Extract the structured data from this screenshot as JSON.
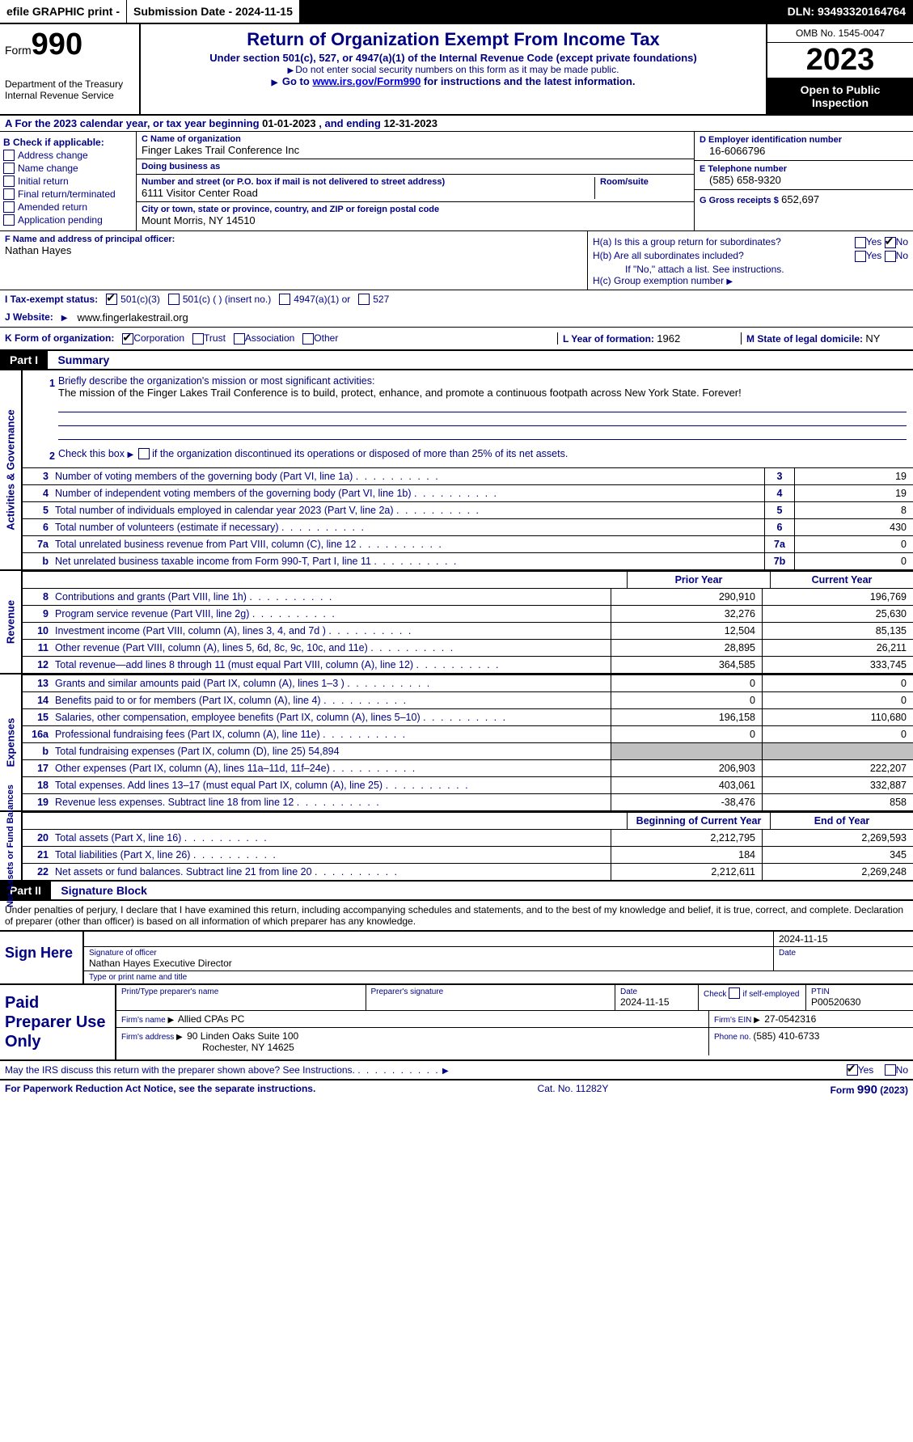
{
  "topbar": {
    "efile": "efile GRAPHIC print -",
    "submission": "Submission Date - 2024-11-15",
    "dln": "DLN: 93493320164764"
  },
  "header": {
    "form_label": "Form",
    "form_number": "990",
    "dept": "Department of the Treasury Internal Revenue Service",
    "title": "Return of Organization Exempt From Income Tax",
    "sub1": "Under section 501(c), 527, or 4947(a)(1) of the Internal Revenue Code (except private foundations)",
    "sub2": "Do not enter social security numbers on this form as it may be made public.",
    "sub3_pre": "Go to ",
    "sub3_link": "www.irs.gov/Form990",
    "sub3_post": " for instructions and the latest information.",
    "omb": "OMB No. 1545-0047",
    "year": "2023",
    "public": "Open to Public Inspection"
  },
  "row_a": {
    "text_pre": "A For the 2023 calendar year, or tax year beginning ",
    "begin": "01-01-2023",
    "text_mid": " , and ending ",
    "end": "12-31-2023"
  },
  "box_b": {
    "label": "B Check if applicable:",
    "items": [
      "Address change",
      "Name change",
      "Initial return",
      "Final return/terminated",
      "Amended return",
      "Application pending"
    ]
  },
  "box_c": {
    "name_label": "C Name of organization",
    "name": "Finger Lakes Trail Conference Inc",
    "dba_label": "Doing business as",
    "dba": "",
    "street_label": "Number and street (or P.O. box if mail is not delivered to street address)",
    "room_label": "Room/suite",
    "street": "6111 Visitor Center Road",
    "city_label": "City or town, state or province, country, and ZIP or foreign postal code",
    "city": "Mount Morris, NY  14510"
  },
  "box_d": {
    "ein_label": "D Employer identification number",
    "ein": "16-6066796",
    "phone_label": "E Telephone number",
    "phone": "(585) 658-9320",
    "gross_label": "G Gross receipts $",
    "gross": "652,697"
  },
  "row_f": {
    "label": "F  Name and address of principal officer:",
    "name": "Nathan Hayes"
  },
  "row_h": {
    "a_label": "H(a)  Is this a group return for subordinates?",
    "b_label": "H(b)  Are all subordinates included?",
    "b_note": "If \"No,\" attach a list. See instructions.",
    "c_label": "H(c)  Group exemption number ",
    "yes": "Yes",
    "no": "No"
  },
  "row_i": {
    "label": "I  Tax-exempt status:",
    "o1": "501(c)(3)",
    "o2": "501(c) (  ) (insert no.)",
    "o3": "4947(a)(1) or",
    "o4": "527"
  },
  "row_j": {
    "label": "J  Website: ",
    "value": "www.fingerlakestrail.org"
  },
  "row_k": {
    "label": "K Form of organization:",
    "o1": "Corporation",
    "o2": "Trust",
    "o3": "Association",
    "o4": "Other"
  },
  "row_l": {
    "label": "L Year of formation: ",
    "value": "1962"
  },
  "row_m": {
    "label": "M State of legal domicile: ",
    "value": "NY"
  },
  "part1": {
    "header": "Part I",
    "title": "Summary",
    "side_ag": "Activities & Governance",
    "side_rev": "Revenue",
    "side_exp": "Expenses",
    "side_net": "Net Assets or Fund Balances",
    "line1_label": "Briefly describe the organization's mission or most significant activities:",
    "line1_text": "The mission of the Finger Lakes Trail Conference is to build, protect, enhance, and promote a continuous footpath across New York State. Forever!",
    "line2": "Check this box      if the organization discontinued its operations or disposed of more than 25% of its net assets.",
    "lines_ag": [
      {
        "n": "3",
        "label": "Number of voting members of the governing body (Part VI, line 1a)",
        "box": "3",
        "val": "19"
      },
      {
        "n": "4",
        "label": "Number of independent voting members of the governing body (Part VI, line 1b)",
        "box": "4",
        "val": "19"
      },
      {
        "n": "5",
        "label": "Total number of individuals employed in calendar year 2023 (Part V, line 2a)",
        "box": "5",
        "val": "8"
      },
      {
        "n": "6",
        "label": "Total number of volunteers (estimate if necessary)",
        "box": "6",
        "val": "430"
      },
      {
        "n": "7a",
        "label": "Total unrelated business revenue from Part VIII, column (C), line 12",
        "box": "7a",
        "val": "0"
      },
      {
        "n": "b",
        "label": "Net unrelated business taxable income from Form 990-T, Part I, line 11",
        "box": "7b",
        "val": "0"
      }
    ],
    "col_headers_rev": {
      "prior": "Prior Year",
      "current": "Current Year"
    },
    "lines_rev": [
      {
        "n": "8",
        "label": "Contributions and grants (Part VIII, line 1h)",
        "p": "290,910",
        "c": "196,769"
      },
      {
        "n": "9",
        "label": "Program service revenue (Part VIII, line 2g)",
        "p": "32,276",
        "c": "25,630"
      },
      {
        "n": "10",
        "label": "Investment income (Part VIII, column (A), lines 3, 4, and 7d )",
        "p": "12,504",
        "c": "85,135"
      },
      {
        "n": "11",
        "label": "Other revenue (Part VIII, column (A), lines 5, 6d, 8c, 9c, 10c, and 11e)",
        "p": "28,895",
        "c": "26,211"
      },
      {
        "n": "12",
        "label": "Total revenue—add lines 8 through 11 (must equal Part VIII, column (A), line 12)",
        "p": "364,585",
        "c": "333,745"
      }
    ],
    "lines_exp": [
      {
        "n": "13",
        "label": "Grants and similar amounts paid (Part IX, column (A), lines 1–3 )",
        "p": "0",
        "c": "0"
      },
      {
        "n": "14",
        "label": "Benefits paid to or for members (Part IX, column (A), line 4)",
        "p": "0",
        "c": "0"
      },
      {
        "n": "15",
        "label": "Salaries, other compensation, employee benefits (Part IX, column (A), lines 5–10)",
        "p": "196,158",
        "c": "110,680"
      },
      {
        "n": "16a",
        "label": "Professional fundraising fees (Part IX, column (A), line 11e)",
        "p": "0",
        "c": "0"
      },
      {
        "n": "b",
        "label": "Total fundraising expenses (Part IX, column (D), line 25) 54,894",
        "p": "",
        "c": "",
        "shade": true
      },
      {
        "n": "17",
        "label": "Other expenses (Part IX, column (A), lines 11a–11d, 11f–24e)",
        "p": "206,903",
        "c": "222,207"
      },
      {
        "n": "18",
        "label": "Total expenses. Add lines 13–17 (must equal Part IX, column (A), line 25)",
        "p": "403,061",
        "c": "332,887"
      },
      {
        "n": "19",
        "label": "Revenue less expenses. Subtract line 18 from line 12",
        "p": "-38,476",
        "c": "858"
      }
    ],
    "col_headers_net": {
      "prior": "Beginning of Current Year",
      "current": "End of Year"
    },
    "lines_net": [
      {
        "n": "20",
        "label": "Total assets (Part X, line 16)",
        "p": "2,212,795",
        "c": "2,269,593"
      },
      {
        "n": "21",
        "label": "Total liabilities (Part X, line 26)",
        "p": "184",
        "c": "345"
      },
      {
        "n": "22",
        "label": "Net assets or fund balances. Subtract line 21 from line 20",
        "p": "2,212,611",
        "c": "2,269,248"
      }
    ]
  },
  "part2": {
    "header": "Part II",
    "title": "Signature Block",
    "declaration": "Under penalties of perjury, I declare that I have examined this return, including accompanying schedules and statements, and to the best of my knowledge and belief, it is true, correct, and complete. Declaration of preparer (other than officer) is based on all information of which preparer has any knowledge.",
    "sign_here": "Sign Here",
    "sig_date": "2024-11-15",
    "sig_officer_label": "Signature of officer",
    "sig_officer": "Nathan Hayes  Executive Director",
    "sig_type_label": "Type or print name and title",
    "date_label": "Date"
  },
  "paid": {
    "label": "Paid Preparer Use Only",
    "row1": {
      "c1_label": "Print/Type preparer's name",
      "c1": "",
      "c2_label": "Preparer's signature",
      "c2": "",
      "c3_label": "Date",
      "c3": "2024-11-15",
      "c4_label": "Check        if self-employed",
      "c5_label": "PTIN",
      "c5": "P00520630"
    },
    "row2": {
      "firm_label": "Firm's name    ",
      "firm": "Allied CPAs PC",
      "ein_label": "Firm's EIN ",
      "ein": "27-0542316"
    },
    "row3": {
      "addr_label": "Firm's address ",
      "addr": "90 Linden Oaks Suite 100",
      "city": "Rochester, NY  14625",
      "phone_label": "Phone no. ",
      "phone": "(585) 410-6733"
    }
  },
  "discuss": {
    "text": "May the IRS discuss this return with the preparer shown above? See Instructions.",
    "yes": "Yes",
    "no": "No"
  },
  "footer": {
    "left": "For Paperwork Reduction Act Notice, see the separate instructions.",
    "center": "Cat. No. 11282Y",
    "right": "Form 990 (2023)"
  }
}
